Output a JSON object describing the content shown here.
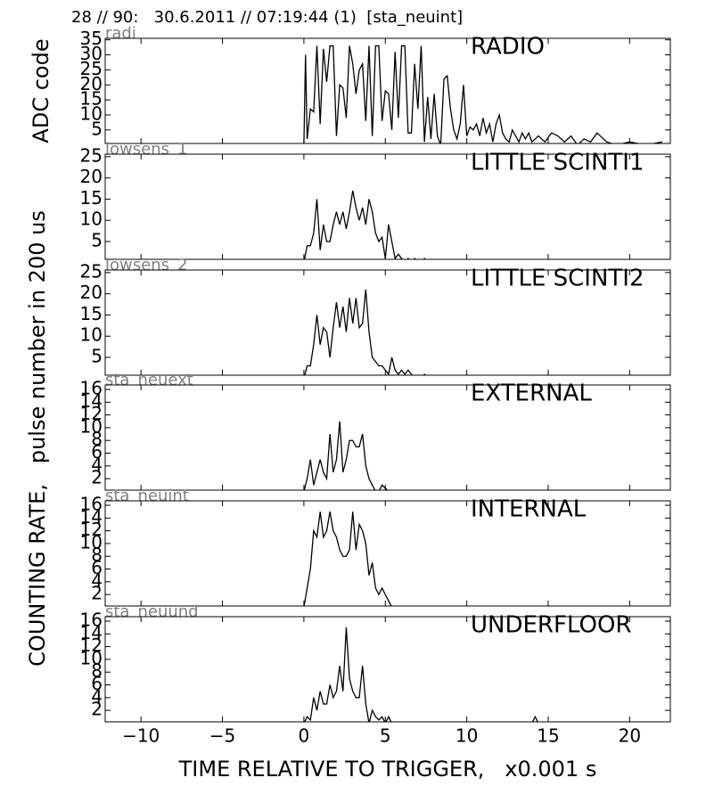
{
  "title": "28 // 90:   30.6.2011 // 07:19:44 (1)  [sta_neuint]",
  "xlabel": "TIME RELATIVE TO TRIGGER,   x0.001 s",
  "ylabel": "COUNTING RATE,   pulse number in 200 us",
  "xlim": [
    -12.2,
    22.5
  ],
  "xticks": [
    {
      "value": -10,
      "label": "−10"
    },
    {
      "value": -5,
      "label": "−5"
    },
    0,
    5,
    10,
    15,
    20
  ],
  "chart_data": [
    {
      "type": "line",
      "channel": "radi",
      "title": "RADIO",
      "ylabel": "ADC code",
      "color": "#000000",
      "ylim": [
        0.5,
        35.5
      ],
      "yticks": [
        5,
        10,
        15,
        20,
        25,
        30,
        35
      ],
      "x": [
        0,
        0.1,
        0.2,
        0.4,
        0.6,
        0.8,
        1.0,
        1.2,
        1.4,
        1.6,
        1.8,
        2.0,
        2.2,
        2.4,
        2.6,
        2.8,
        3.0,
        3.2,
        3.4,
        3.6,
        3.8,
        4.0,
        4.2,
        4.4,
        4.6,
        4.8,
        5.0,
        5.2,
        5.4,
        5.6,
        5.8,
        6.0,
        6.2,
        6.4,
        6.6,
        6.8,
        7.0,
        7.2,
        7.4,
        7.6,
        7.8,
        8.0,
        8.2,
        8.4,
        8.6,
        8.8,
        9.0,
        9.2,
        9.4,
        9.6,
        9.8,
        10.0,
        10.2,
        10.4,
        10.6,
        10.8,
        11.0,
        11.2,
        11.4,
        11.6,
        11.8,
        12.0,
        12.2,
        12.4,
        12.6,
        12.8,
        13.0,
        13.2,
        13.4,
        13.6,
        13.8,
        14.0,
        14.4,
        14.8,
        15.2,
        15.6,
        16.0,
        16.4,
        16.8,
        17.2,
        17.6,
        18.0,
        18.6,
        19.2,
        20.0,
        21.0,
        22.0
      ],
      "values": [
        0,
        30,
        2,
        12,
        11,
        33,
        7,
        32,
        21,
        33,
        33,
        3,
        20,
        19,
        9,
        33,
        27,
        17,
        25,
        27,
        8,
        33,
        3,
        33,
        33,
        8,
        18,
        17,
        5,
        31,
        9,
        33,
        33,
        4,
        4,
        27,
        12,
        33,
        1,
        16,
        2,
        17,
        3,
        0,
        22,
        23,
        12,
        5,
        2,
        7,
        20,
        3,
        6,
        5,
        7,
        3,
        9,
        4,
        7,
        1,
        7,
        10,
        4,
        2,
        1,
        5,
        3,
        1,
        4,
        2,
        4,
        1,
        3,
        1,
        4,
        3,
        1,
        3,
        0,
        2,
        1,
        4,
        1,
        0,
        1,
        0,
        1
      ]
    },
    {
      "type": "line",
      "channel": "lowsens_1",
      "title": "LITTLE SCINTI1",
      "color": "#000000",
      "ylim": [
        0.8,
        25.6
      ],
      "yticks": [
        5,
        10,
        15,
        20,
        25
      ],
      "x": [
        0,
        0.2,
        0.4,
        0.6,
        0.8,
        1.0,
        1.2,
        1.4,
        1.6,
        1.8,
        2.0,
        2.2,
        2.4,
        2.6,
        2.8,
        3.0,
        3.2,
        3.4,
        3.6,
        3.8,
        4.0,
        4.2,
        4.4,
        4.6,
        4.8,
        5.0,
        5.2,
        5.4,
        5.6,
        5.8,
        6.0,
        6.2,
        6.4,
        6.6,
        6.8,
        7.0,
        7.2,
        7.4,
        7.6
      ],
      "values": [
        0,
        4,
        4,
        7,
        15,
        3,
        9,
        5,
        5,
        9,
        12,
        9,
        12,
        8,
        12,
        17,
        13,
        10,
        13,
        9,
        15,
        12,
        7,
        5,
        6,
        1,
        9,
        5,
        1,
        2,
        1,
        0,
        1,
        0,
        1,
        0,
        0,
        1,
        0
      ]
    },
    {
      "type": "line",
      "channel": "lowsens_2",
      "title": "LITTLE SCINTI2",
      "color": "#000000",
      "ylim": [
        0.8,
        25.6
      ],
      "yticks": [
        5,
        10,
        15,
        20,
        25
      ],
      "x": [
        0,
        0.2,
        0.4,
        0.6,
        0.8,
        1.0,
        1.2,
        1.4,
        1.6,
        1.8,
        2.0,
        2.2,
        2.4,
        2.6,
        2.8,
        3.0,
        3.2,
        3.4,
        3.6,
        3.8,
        4.0,
        4.2,
        4.4,
        4.6,
        4.8,
        5.0,
        5.2,
        5.4,
        5.6,
        5.8,
        6.0,
        6.2,
        6.4,
        6.6,
        6.8,
        7.0,
        7.2,
        7.4,
        7.6
      ],
      "values": [
        0,
        3,
        3,
        8,
        15,
        8,
        12,
        11,
        5,
        12,
        18,
        12,
        17,
        11,
        19,
        13,
        19,
        12,
        13,
        21,
        11,
        5,
        4,
        3,
        3,
        2,
        1,
        5,
        2,
        1,
        2,
        1,
        2,
        1,
        0,
        0,
        0,
        1,
        0
      ]
    },
    {
      "type": "line",
      "channel": "sta_neuext",
      "title": "EXTERNAL",
      "color": "#000000",
      "ylim": [
        0.2,
        16.7
      ],
      "yticks": [
        2,
        4,
        6,
        8,
        10,
        12,
        14,
        16
      ],
      "x": [
        0,
        0.2,
        0.4,
        0.6,
        0.8,
        1.0,
        1.2,
        1.4,
        1.6,
        1.8,
        2.0,
        2.2,
        2.4,
        2.6,
        2.8,
        3.0,
        3.2,
        3.4,
        3.6,
        3.8,
        4.0,
        4.2,
        4.4,
        4.6,
        4.8,
        5.0,
        5.2
      ],
      "values": [
        0,
        2,
        5,
        1,
        3,
        5,
        3,
        2,
        9,
        3,
        5,
        11,
        3,
        5,
        8,
        8,
        7,
        7,
        9,
        4,
        2,
        1,
        0,
        0,
        1,
        0.5,
        0
      ]
    },
    {
      "type": "line",
      "channel": "sta_neuint",
      "title": "INTERNAL",
      "color": "#000000",
      "ylim": [
        0.2,
        16.7
      ],
      "yticks": [
        2,
        4,
        6,
        8,
        10,
        12,
        14,
        16
      ],
      "x": [
        0,
        0.2,
        0.4,
        0.6,
        0.8,
        1.0,
        1.2,
        1.4,
        1.6,
        1.8,
        2.0,
        2.2,
        2.4,
        2.6,
        2.8,
        3.0,
        3.2,
        3.4,
        3.6,
        3.8,
        4.0,
        4.2,
        4.4,
        4.6,
        4.8,
        5.0,
        5.2,
        5.4
      ],
      "values": [
        0,
        3,
        6,
        12,
        11,
        15,
        11,
        12,
        15,
        12,
        11,
        9,
        8,
        8,
        9,
        15,
        9,
        13,
        12,
        10,
        5,
        7,
        3,
        2,
        3,
        2,
        1,
        0
      ]
    },
    {
      "type": "line",
      "channel": "sta_neuund",
      "title": "UNDERFLOOR",
      "color": "#000000",
      "ylim": [
        0.2,
        16.7
      ],
      "yticks": [
        2,
        4,
        6,
        8,
        10,
        12,
        14,
        16
      ],
      "x": [
        0,
        0.2,
        0.4,
        0.6,
        0.8,
        1.0,
        1.2,
        1.4,
        1.6,
        1.8,
        2.0,
        2.2,
        2.4,
        2.6,
        2.8,
        3.0,
        3.2,
        3.4,
        3.6,
        3.8,
        4.0,
        4.2,
        4.4,
        4.6,
        4.8,
        5.0,
        5.2,
        5.4,
        14.0,
        14.2,
        14.4
      ],
      "values": [
        0,
        1,
        0.5,
        4,
        2,
        5,
        3,
        3,
        6,
        4,
        5,
        9,
        5,
        15,
        7,
        5,
        4,
        4,
        9,
        3,
        0,
        2,
        1,
        0.5,
        1,
        0,
        1,
        0,
        0,
        1,
        0
      ]
    }
  ]
}
